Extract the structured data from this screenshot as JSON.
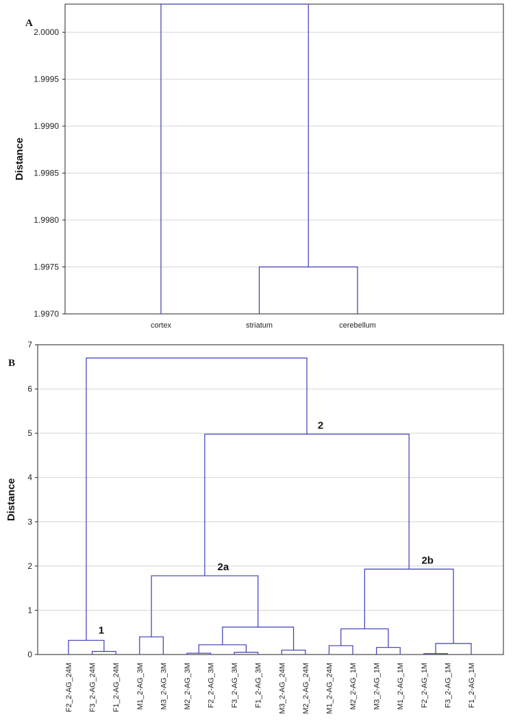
{
  "chart_data": [
    {
      "type": "dendrogram",
      "panel_label": "A",
      "ylabel": "Distance",
      "ylim": [
        1.997,
        2.0003
      ],
      "yticks": [
        1.997,
        1.9975,
        1.998,
        1.9985,
        1.999,
        1.9995,
        2.0
      ],
      "ytick_labels": [
        "1.9970",
        "1.9975",
        "1.9980",
        "1.9985",
        "1.9990",
        "1.9995",
        "2.0000"
      ],
      "grid": true,
      "leaves": [
        "cortex",
        "striatum",
        "cerebellum"
      ],
      "merges": [
        {
          "id": "A1",
          "children": [
            "L1",
            "L2"
          ],
          "height": 1.9975
        },
        {
          "id": "A2",
          "children": [
            "L0",
            "A1"
          ],
          "height": 2.0003
        }
      ],
      "cluster_labels": []
    },
    {
      "type": "dendrogram",
      "panel_label": "B",
      "ylabel": "Distance",
      "ylim": [
        0,
        7
      ],
      "yticks": [
        0,
        1,
        2,
        3,
        4,
        5,
        6,
        7
      ],
      "ytick_labels": [
        "0",
        "1",
        "2",
        "3",
        "4",
        "5",
        "6",
        "7"
      ],
      "grid": true,
      "leaves": [
        "F2_2-AG_24M",
        "F3_2-AG_24M",
        "F1_2-AG_24M",
        "M1_2-AG_3M",
        "M3_2-AG_3M",
        "M2_2-AG_3M",
        "F2_2-AG_3M",
        "F3_2-AG_3M",
        "F1_2-AG_3M",
        "M3_2-AG_24M",
        "M2_2-AG_24M",
        "M1_2-AG_24M",
        "M2_2-AG_1M",
        "M3_2-AG_1M",
        "M1_2-AG_1M",
        "F2_2-AG_1M",
        "F3_2-AG_1M",
        "F1_2-AG_1M"
      ],
      "merges": [
        {
          "id": "b1",
          "children": [
            "L1",
            "L2"
          ],
          "height": 0.07
        },
        {
          "id": "b2",
          "children": [
            "L0",
            "b1"
          ],
          "height": 0.32
        },
        {
          "id": "b3",
          "children": [
            "L3",
            "L4"
          ],
          "height": 0.4
        },
        {
          "id": "b4",
          "children": [
            "L5",
            "L6"
          ],
          "height": 0.03
        },
        {
          "id": "b5",
          "children": [
            "L7",
            "L8"
          ],
          "height": 0.05
        },
        {
          "id": "b6",
          "children": [
            "b4",
            "b5"
          ],
          "height": 0.22
        },
        {
          "id": "b7",
          "children": [
            "L9",
            "L10"
          ],
          "height": 0.1
        },
        {
          "id": "b8",
          "children": [
            "b6",
            "b7"
          ],
          "height": 0.62
        },
        {
          "id": "b9",
          "children": [
            "b3",
            "b8"
          ],
          "height": 1.78
        },
        {
          "id": "b10",
          "children": [
            "L11",
            "L12"
          ],
          "height": 0.2
        },
        {
          "id": "b11",
          "children": [
            "L13",
            "L14"
          ],
          "height": 0.16
        },
        {
          "id": "b12",
          "children": [
            "b10",
            "b11"
          ],
          "height": 0.58
        },
        {
          "id": "b13",
          "children": [
            "L15",
            "L16"
          ],
          "height": 0.02
        },
        {
          "id": "b14",
          "children": [
            "b13",
            "L17"
          ],
          "height": 0.25
        },
        {
          "id": "b15",
          "children": [
            "b12",
            "b14"
          ],
          "height": 1.93
        },
        {
          "id": "b16",
          "children": [
            "b9",
            "b15"
          ],
          "height": 4.98
        },
        {
          "id": "b17",
          "children": [
            "b2",
            "b16"
          ],
          "height": 6.7
        }
      ],
      "cluster_labels": [
        {
          "text": "1",
          "node": "b2"
        },
        {
          "text": "2",
          "node": "b16"
        },
        {
          "text": "2a",
          "node": "b9"
        },
        {
          "text": "2b",
          "node": "b15"
        }
      ]
    }
  ]
}
